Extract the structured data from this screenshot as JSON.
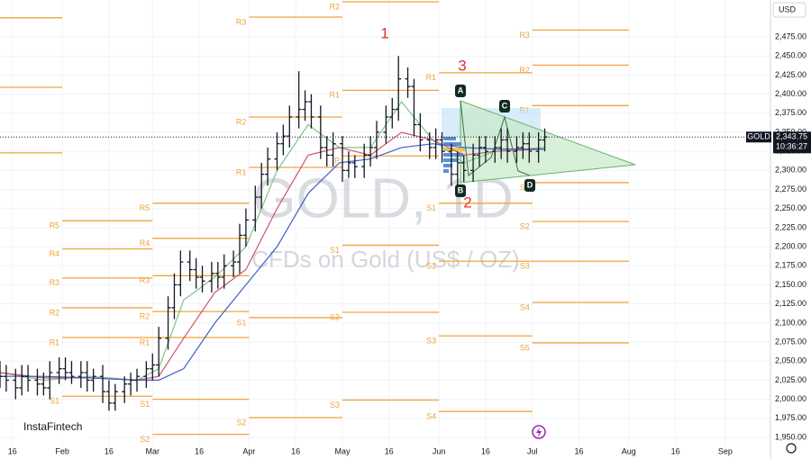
{
  "chart_data": {
    "type": "ohlc",
    "title": "GOLD, 1D",
    "subtitle": "CFDs on Gold (US$ / OZ)",
    "symbol": "GOLD",
    "currency": "USD",
    "brand": "InstaFintech",
    "countdown": "10:36:27",
    "last_price": {
      "value": 2343.75,
      "label": "2,343.75"
    },
    "color": "#131722",
    "x": [
      11,
      13,
      16,
      18,
      20,
      23,
      25,
      27,
      30,
      32,
      34,
      37,
      39,
      41,
      44,
      46,
      48,
      51,
      53,
      55,
      58,
      60,
      62,
      65,
      67,
      69,
      72,
      74,
      76,
      79,
      81,
      83,
      86,
      88,
      90,
      93,
      95,
      97,
      100,
      102,
      104,
      107,
      109,
      111,
      114,
      116,
      118,
      121,
      123,
      125,
      128,
      130,
      132,
      135,
      137,
      139,
      142,
      144,
      146,
      149,
      151,
      153,
      156,
      158,
      160,
      163,
      165,
      167,
      170,
      172,
      174,
      177,
      179,
      181,
      184,
      186
    ],
    "open": [
      2035,
      2030,
      2025,
      2015,
      2030,
      2025,
      2020,
      2015,
      2035,
      2040,
      2035,
      2030,
      2035,
      2025,
      2030,
      2010,
      1995,
      2010,
      2020,
      2025,
      2030,
      2040,
      2045,
      2080,
      2120,
      2150,
      2180,
      2170,
      2160,
      2155,
      2165,
      2160,
      2175,
      2180,
      2215,
      2235,
      2265,
      2295,
      2315,
      2335,
      2345,
      2370,
      2380,
      2390,
      2370,
      2330,
      2320,
      2335,
      2300,
      2310,
      2305,
      2320,
      2330,
      2350,
      2370,
      2380,
      2420,
      2410,
      2360,
      2340,
      2330,
      2340,
      2325,
      2295,
      2310,
      2300,
      2320,
      2330,
      2325,
      2330,
      2340,
      2325,
      2330,
      2335,
      2325,
      2340
    ],
    "high": [
      2050,
      2045,
      2040,
      2045,
      2045,
      2040,
      2035,
      2050,
      2055,
      2055,
      2050,
      2050,
      2050,
      2040,
      2045,
      2025,
      2020,
      2030,
      2035,
      2040,
      2050,
      2060,
      2095,
      2135,
      2165,
      2195,
      2195,
      2185,
      2175,
      2180,
      2180,
      2190,
      2195,
      2230,
      2250,
      2280,
      2310,
      2330,
      2350,
      2360,
      2385,
      2430,
      2405,
      2400,
      2385,
      2345,
      2350,
      2345,
      2325,
      2320,
      2335,
      2345,
      2365,
      2385,
      2395,
      2450,
      2435,
      2420,
      2375,
      2350,
      2355,
      2350,
      2335,
      2325,
      2320,
      2335,
      2345,
      2345,
      2345,
      2355,
      2355,
      2345,
      2350,
      2350,
      2350,
      2355
    ],
    "low": [
      2015,
      2010,
      2000,
      2005,
      2010,
      2005,
      2005,
      2000,
      2020,
      2025,
      2020,
      2015,
      2010,
      2010,
      1995,
      1985,
      1985,
      1995,
      2005,
      2010,
      2015,
      2025,
      2030,
      2065,
      2105,
      2135,
      2155,
      2145,
      2140,
      2140,
      2145,
      2145,
      2160,
      2165,
      2200,
      2220,
      2250,
      2280,
      2300,
      2320,
      2330,
      2355,
      2365,
      2355,
      2315,
      2305,
      2305,
      2285,
      2290,
      2290,
      2290,
      2305,
      2315,
      2335,
      2355,
      2365,
      2395,
      2345,
      2325,
      2315,
      2315,
      2310,
      2280,
      2280,
      2285,
      2285,
      2305,
      2310,
      2310,
      2315,
      2310,
      2310,
      2315,
      2310,
      2310,
      2325
    ],
    "close": [
      2030,
      2025,
      2015,
      2030,
      2025,
      2020,
      2015,
      2035,
      2040,
      2035,
      2030,
      2035,
      2025,
      2030,
      2010,
      1995,
      2010,
      2020,
      2025,
      2030,
      2040,
      2045,
      2080,
      2120,
      2150,
      2180,
      2170,
      2160,
      2155,
      2165,
      2160,
      2175,
      2180,
      2215,
      2235,
      2265,
      2295,
      2315,
      2335,
      2345,
      2370,
      2380,
      2390,
      2370,
      2330,
      2320,
      2335,
      2300,
      2310,
      2305,
      2320,
      2330,
      2350,
      2370,
      2380,
      2420,
      2410,
      2360,
      2340,
      2330,
      2340,
      2325,
      2295,
      2310,
      2300,
      2320,
      2330,
      2325,
      2330,
      2340,
      2325,
      2330,
      2335,
      2325,
      2340,
      2343.75
    ],
    "moving_averages": [
      {
        "color": "#7cc784",
        "x": [
          11,
          25,
          40,
          55,
          62,
          70,
          80,
          90,
          100,
          110,
          120,
          130,
          140,
          150,
          160,
          170,
          186
        ],
        "values": [
          2035,
          2025,
          2030,
          2025,
          2040,
          2130,
          2160,
          2200,
          2300,
          2360,
          2330,
          2330,
          2390,
          2340,
          2310,
          2325,
          2330
        ]
      },
      {
        "color": "#d0546c",
        "x": [
          11,
          25,
          40,
          55,
          62,
          70,
          80,
          90,
          100,
          110,
          120,
          130,
          140,
          150,
          160,
          170,
          186
        ],
        "values": [
          2035,
          2028,
          2028,
          2025,
          2030,
          2080,
          2140,
          2170,
          2250,
          2320,
          2330,
          2320,
          2350,
          2340,
          2320,
          2325,
          2328
        ]
      },
      {
        "color": "#3f5fc6",
        "x": [
          11,
          25,
          40,
          55,
          62,
          70,
          80,
          90,
          100,
          110,
          120,
          130,
          140,
          150,
          160,
          170,
          186
        ],
        "values": [
          2030,
          2030,
          2028,
          2025,
          2025,
          2040,
          2100,
          2150,
          2200,
          2270,
          2310,
          2315,
          2330,
          2335,
          2330,
          2328,
          2328
        ]
      }
    ],
    "pivot_color": "#f0a43c",
    "pivots": [
      {
        "label": null,
        "value": 2500,
        "x0": 11,
        "x1": 31
      },
      {
        "label": null,
        "value": 2409,
        "x0": 11,
        "x1": 31
      },
      {
        "label": null,
        "value": 2323,
        "x0": 11,
        "x1": 31
      },
      {
        "label": "R5",
        "value": 2234,
        "x0": 31,
        "x1": 60
      },
      {
        "label": "R4",
        "value": 2197,
        "x0": 31,
        "x1": 60
      },
      {
        "label": "R3",
        "value": 2159,
        "x0": 31,
        "x1": 60
      },
      {
        "label": "R2",
        "value": 2120,
        "x0": 31,
        "x1": 60
      },
      {
        "label": "R1",
        "value": 2081,
        "x0": 31,
        "x1": 60
      },
      {
        "label": "S1",
        "value": 2004,
        "x0": 31,
        "x1": 60
      },
      {
        "label": "R5",
        "value": 2257,
        "x0": 60,
        "x1": 91
      },
      {
        "label": "R4",
        "value": 2211,
        "x0": 60,
        "x1": 91
      },
      {
        "label": "R3",
        "value": 2162,
        "x0": 60,
        "x1": 91
      },
      {
        "label": "R2",
        "value": 2115,
        "x0": 60,
        "x1": 91
      },
      {
        "label": "R1",
        "value": 2081,
        "x0": 60,
        "x1": 91
      },
      {
        "label": "S1",
        "value": 2000,
        "x0": 60,
        "x1": 91
      },
      {
        "label": "S2",
        "value": 1954,
        "x0": 60,
        "x1": 91
      },
      {
        "label": "R3",
        "value": 2501,
        "x0": 91,
        "x1": 121
      },
      {
        "label": "R2",
        "value": 2370,
        "x0": 91,
        "x1": 121
      },
      {
        "label": "R1",
        "value": 2304,
        "x0": 91,
        "x1": 121
      },
      {
        "label": "S1",
        "value": 2107,
        "x0": 91,
        "x1": 121
      },
      {
        "label": "S2",
        "value": 1976,
        "x0": 91,
        "x1": 121
      },
      {
        "label": "R2",
        "value": 2521,
        "x0": 121,
        "x1": 152
      },
      {
        "label": "R1",
        "value": 2405,
        "x0": 121,
        "x1": 152
      },
      {
        "label": "P",
        "value": 2319,
        "x0": 121,
        "x1": 152
      },
      {
        "label": "S1",
        "value": 2202,
        "x0": 121,
        "x1": 152
      },
      {
        "label": "S2",
        "value": 2114,
        "x0": 121,
        "x1": 152
      },
      {
        "label": "S3",
        "value": 1999,
        "x0": 121,
        "x1": 152
      },
      {
        "label": "R1",
        "value": 2428,
        "x0": 152,
        "x1": 182
      },
      {
        "label": "S1",
        "value": 2257,
        "x0": 152,
        "x1": 182
      },
      {
        "label": "S2",
        "value": 2181,
        "x0": 152,
        "x1": 182
      },
      {
        "label": "S3",
        "value": 2083,
        "x0": 152,
        "x1": 182
      },
      {
        "label": "S4",
        "value": 1984,
        "x0": 152,
        "x1": 182
      },
      {
        "label": "R3",
        "value": 2484,
        "x0": 182,
        "x1": 213
      },
      {
        "label": "R2",
        "value": 2438,
        "x0": 182,
        "x1": 213
      },
      {
        "label": "R1",
        "value": 2385,
        "x0": 182,
        "x1": 213
      },
      {
        "label": "S1",
        "value": 2284,
        "x0": 182,
        "x1": 213
      },
      {
        "label": "S2",
        "value": 2233,
        "x0": 182,
        "x1": 213
      },
      {
        "label": "S3",
        "value": 2181,
        "x0": 182,
        "x1": 213
      },
      {
        "label": "S4",
        "value": 2127,
        "x0": 182,
        "x1": 213
      },
      {
        "label": "S5",
        "value": 2074,
        "x0": 182,
        "x1": 213
      }
    ],
    "annotations": [
      "1",
      "2",
      "3"
    ],
    "points": [
      "A",
      "B",
      "C",
      "D"
    ],
    "xlim": [
      11,
      258.5
    ],
    "xticks": [
      {
        "value": 15,
        "label": "16"
      },
      {
        "value": 31,
        "label": "Feb"
      },
      {
        "value": 46,
        "label": "16"
      },
      {
        "value": 60,
        "label": "Mar"
      },
      {
        "value": 75,
        "label": "16"
      },
      {
        "value": 91,
        "label": "Apr"
      },
      {
        "value": 106,
        "label": "16"
      },
      {
        "value": 121,
        "label": "May"
      },
      {
        "value": 136,
        "label": "16"
      },
      {
        "value": 152,
        "label": "Jun"
      },
      {
        "value": 167,
        "label": "16"
      },
      {
        "value": 182,
        "label": "Jul"
      },
      {
        "value": 197,
        "label": "16"
      },
      {
        "value": 213,
        "label": "Aug"
      },
      {
        "value": 228,
        "label": "16"
      },
      {
        "value": 244,
        "label": "Sep"
      }
    ],
    "ylim": [
      1939.4,
      2523.4
    ],
    "yticks": [
      {
        "value": 1950,
        "label": "1,950.00"
      },
      {
        "value": 1975,
        "label": "1,975.00"
      },
      {
        "value": 2000,
        "label": "2,000.00"
      },
      {
        "value": 2025,
        "label": "2,025.00"
      },
      {
        "value": 2050,
        "label": "2,050.00"
      },
      {
        "value": 2075,
        "label": "2,075.00"
      },
      {
        "value": 2100,
        "label": "2,100.00"
      },
      {
        "value": 2125,
        "label": "2,125.00"
      },
      {
        "value": 2150,
        "label": "2,150.00"
      },
      {
        "value": 2175,
        "label": "2,175.00"
      },
      {
        "value": 2200,
        "label": "2,200.00"
      },
      {
        "value": 2225,
        "label": "2,225.00"
      },
      {
        "value": 2250,
        "label": "2,250.00"
      },
      {
        "value": 2275,
        "label": "2,275.00"
      },
      {
        "value": 2300,
        "label": "2,300.00"
      },
      {
        "value": 2325,
        "label": "2,325.00"
      },
      {
        "value": 2350,
        "label": "2,350.00"
      },
      {
        "value": 2375,
        "label": "2,375.00"
      },
      {
        "value": 2400,
        "label": "2,400.00"
      },
      {
        "value": 2425,
        "label": "2,425.00"
      },
      {
        "value": 2450,
        "label": "2,450.00"
      },
      {
        "value": 2475,
        "label": "2,475.00"
      }
    ],
    "grid": true
  }
}
